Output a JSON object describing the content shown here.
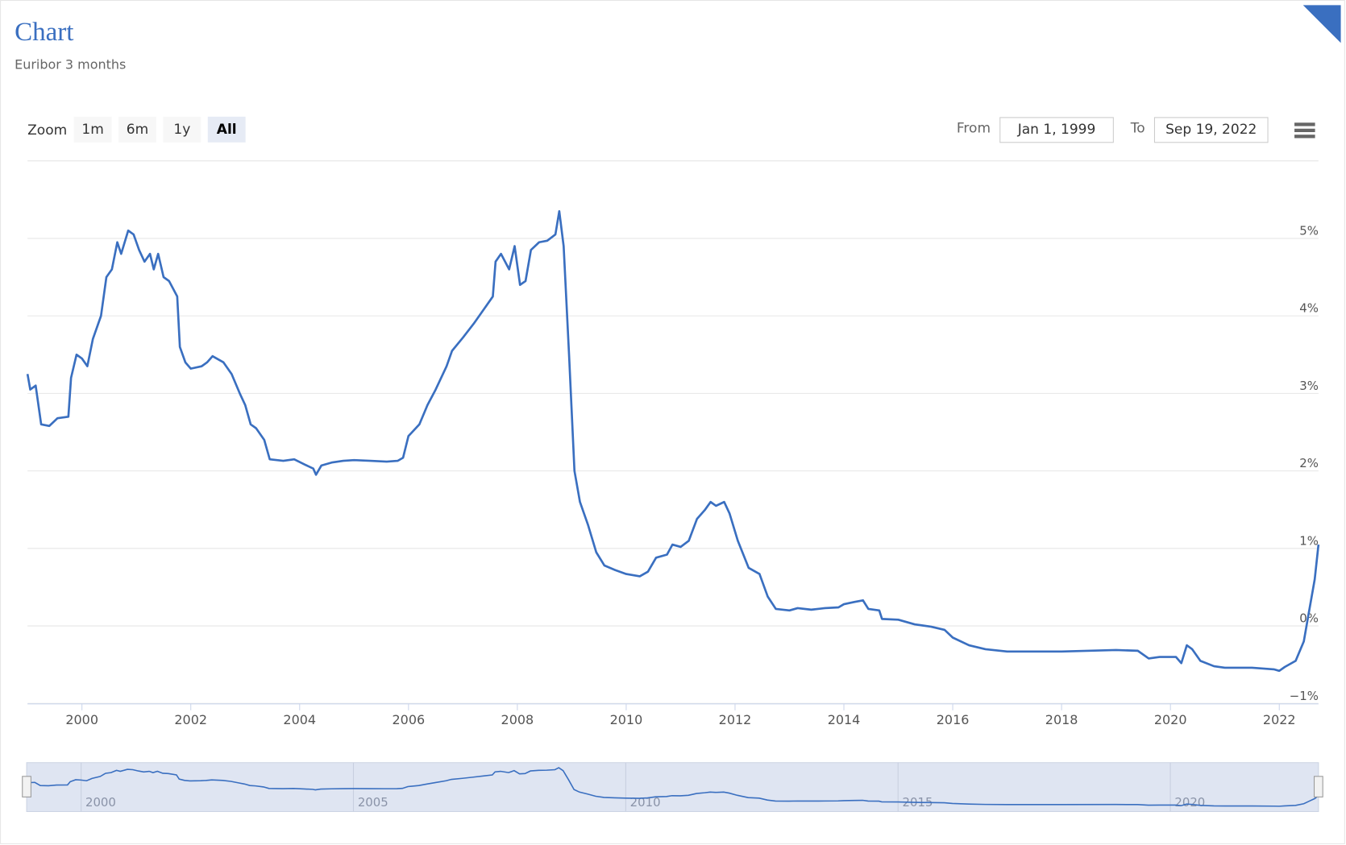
{
  "chart_data": {
    "type": "line",
    "title": "Chart",
    "subtitle": "Euribor 3 months",
    "color": "#3a6fc0",
    "x": [
      1999.0,
      1999.05,
      1999.15,
      1999.25,
      1999.4,
      1999.55,
      1999.75,
      1999.8,
      1999.9,
      2000.0,
      2000.1,
      2000.2,
      2000.35,
      2000.45,
      2000.55,
      2000.65,
      2000.72,
      2000.85,
      2000.95,
      2001.05,
      2001.15,
      2001.25,
      2001.32,
      2001.4,
      2001.5,
      2001.6,
      2001.75,
      2001.8,
      2001.9,
      2002.0,
      2002.2,
      2002.3,
      2002.4,
      2002.6,
      2002.75,
      2002.9,
      2003.0,
      2003.1,
      2003.2,
      2003.35,
      2003.45,
      2003.7,
      2003.9,
      2004.1,
      2004.25,
      2004.3,
      2004.4,
      2004.6,
      2004.8,
      2005.0,
      2005.3,
      2005.6,
      2005.8,
      2005.9,
      2006.0,
      2006.2,
      2006.35,
      2006.5,
      2006.7,
      2006.8,
      2007.0,
      2007.2,
      2007.4,
      2007.55,
      2007.6,
      2007.7,
      2007.85,
      2007.95,
      2008.05,
      2008.15,
      2008.25,
      2008.4,
      2008.55,
      2008.7,
      2008.77,
      2008.85,
      2008.95,
      2009.05,
      2009.15,
      2009.3,
      2009.45,
      2009.6,
      2009.8,
      2010.0,
      2010.25,
      2010.4,
      2010.55,
      2010.75,
      2010.85,
      2011.0,
      2011.15,
      2011.3,
      2011.45,
      2011.55,
      2011.65,
      2011.8,
      2011.9,
      2012.05,
      2012.25,
      2012.45,
      2012.6,
      2012.75,
      2013.0,
      2013.15,
      2013.4,
      2013.65,
      2013.9,
      2014.0,
      2014.2,
      2014.35,
      2014.45,
      2014.65,
      2014.7,
      2015.0,
      2015.3,
      2015.6,
      2015.85,
      2016.0,
      2016.3,
      2016.6,
      2017.0,
      2018.0,
      2019.0,
      2019.4,
      2019.6,
      2019.8,
      2020.1,
      2020.2,
      2020.3,
      2020.4,
      2020.55,
      2020.8,
      2021.0,
      2021.5,
      2021.9,
      2022.0,
      2022.1,
      2022.3,
      2022.45,
      2022.55,
      2022.65,
      2022.72
    ],
    "values": [
      3.25,
      3.05,
      3.1,
      2.6,
      2.58,
      2.68,
      2.7,
      3.2,
      3.5,
      3.45,
      3.35,
      3.7,
      4.0,
      4.5,
      4.6,
      4.95,
      4.8,
      5.1,
      5.05,
      4.85,
      4.7,
      4.8,
      4.6,
      4.8,
      4.5,
      4.45,
      4.25,
      3.6,
      3.4,
      3.32,
      3.35,
      3.4,
      3.48,
      3.4,
      3.25,
      3.0,
      2.85,
      2.6,
      2.55,
      2.4,
      2.15,
      2.13,
      2.15,
      2.08,
      2.03,
      1.95,
      2.07,
      2.11,
      2.13,
      2.14,
      2.13,
      2.12,
      2.13,
      2.17,
      2.45,
      2.6,
      2.85,
      3.05,
      3.35,
      3.55,
      3.72,
      3.9,
      4.1,
      4.25,
      4.7,
      4.8,
      4.6,
      4.9,
      4.4,
      4.45,
      4.85,
      4.95,
      4.97,
      5.05,
      5.35,
      4.9,
      3.5,
      2.0,
      1.6,
      1.3,
      0.95,
      0.78,
      0.72,
      0.67,
      0.64,
      0.7,
      0.88,
      0.92,
      1.05,
      1.02,
      1.1,
      1.38,
      1.5,
      1.6,
      1.55,
      1.6,
      1.45,
      1.1,
      0.75,
      0.67,
      0.38,
      0.22,
      0.2,
      0.23,
      0.21,
      0.23,
      0.24,
      0.28,
      0.31,
      0.33,
      0.22,
      0.2,
      0.09,
      0.08,
      0.02,
      -0.01,
      -0.05,
      -0.15,
      -0.25,
      -0.3,
      -0.33,
      -0.33,
      -0.31,
      -0.32,
      -0.42,
      -0.4,
      -0.4,
      -0.48,
      -0.25,
      -0.3,
      -0.45,
      -0.52,
      -0.54,
      -0.54,
      -0.56,
      -0.58,
      -0.53,
      -0.45,
      -0.2,
      0.2,
      0.6,
      1.05
    ],
    "xlim": [
      1999.0,
      2022.72
    ],
    "xticks": [
      2000,
      2002,
      2004,
      2006,
      2008,
      2010,
      2012,
      2014,
      2016,
      2018,
      2020,
      2022
    ],
    "ylim": [
      -1,
      6
    ],
    "yticks": [
      {
        "value": -1,
        "label": "−1%"
      },
      {
        "value": 0,
        "label": "0%"
      },
      {
        "value": 1,
        "label": "1%"
      },
      {
        "value": 2,
        "label": "2%"
      },
      {
        "value": 3,
        "label": "3%"
      },
      {
        "value": 4,
        "label": "4%"
      },
      {
        "value": 5,
        "label": "5%"
      }
    ],
    "grid": true,
    "navigator": {
      "xticks": [
        2000,
        2005,
        2010,
        2015,
        2020
      ]
    }
  },
  "controls": {
    "zoom_label": "Zoom",
    "zoom_buttons": [
      "1m",
      "6m",
      "1y",
      "All"
    ],
    "selected": "All",
    "from_label": "From",
    "from_value": "Jan 1, 1999",
    "to_label": "To",
    "to_value": "Sep 19, 2022"
  }
}
